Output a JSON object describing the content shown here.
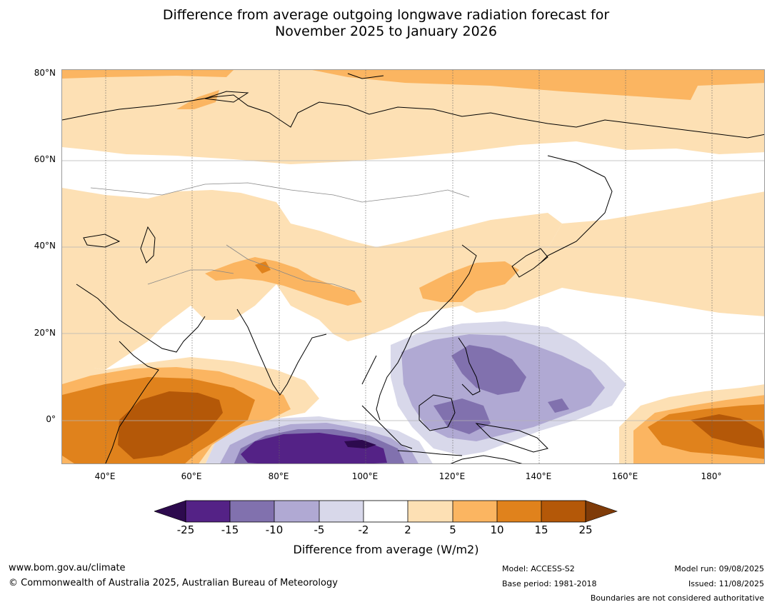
{
  "title": {
    "line1": "Difference from average outgoing longwave radiation forecast for",
    "line2": "November 2025 to January 2026"
  },
  "axes": {
    "lat_labels": [
      "80°N",
      "60°N",
      "40°N",
      "20°N",
      "0°"
    ],
    "lon_labels": [
      "40°E",
      "60°E",
      "80°E",
      "100°E",
      "120°E",
      "140°E",
      "160°E",
      "180°"
    ]
  },
  "legend": {
    "label": "Difference from average (W/m2)",
    "ticks": [
      "-25",
      "-15",
      "-10",
      "-5",
      "-2",
      "2",
      "5",
      "10",
      "15",
      "25"
    ],
    "colors": {
      "lt_-25": "#2d0a4e",
      "-25_-15": "#542286",
      "-15_-10": "#8171ae",
      "-10_-5": "#b0a9d3",
      "-5_-2": "#d8d8ea",
      "-2_2": "#ffffff",
      "2_5": "#fde0b4",
      "5_10": "#fbb561",
      "10_15": "#e0821c",
      "15_25": "#b45808",
      "gt_25": "#7f3b08"
    }
  },
  "footer": {
    "url": "www.bom.gov.au/climate",
    "copyright": "© Commonwealth of Australia 2025, Australian Bureau of Meteorology",
    "model": "Model: ACCESS-S2",
    "base_period": "Base period: 1981-2018",
    "model_run": "Model run: 09/08/2025",
    "issued": "Issued: 11/08/2025",
    "disclaimer": "Boundaries are not considered authoritative"
  }
}
